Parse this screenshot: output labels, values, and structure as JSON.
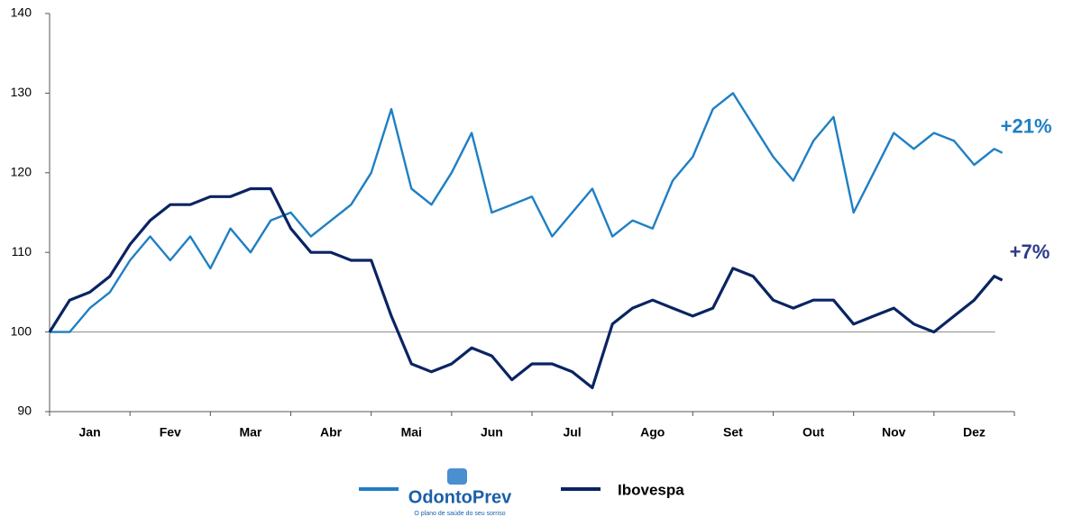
{
  "chart_data": {
    "type": "line",
    "categories": [
      "Jan",
      "Fev",
      "Mar",
      "Abr",
      "Mai",
      "Jun",
      "Jul",
      "Ago",
      "Set",
      "Out",
      "Nov",
      "Dez"
    ],
    "x": [
      0,
      0.25,
      0.5,
      0.75,
      1,
      1.25,
      1.5,
      1.75,
      2,
      2.25,
      2.5,
      2.75,
      3,
      3.25,
      3.5,
      3.75,
      4,
      4.25,
      4.5,
      4.75,
      5,
      5.25,
      5.5,
      5.75,
      6,
      6.25,
      6.5,
      6.75,
      7,
      7.25,
      7.5,
      7.75,
      8,
      8.25,
      8.5,
      8.75,
      9,
      9.25,
      9.5,
      9.75,
      10,
      10.25,
      10.5,
      10.75,
      11,
      11.25,
      11.5,
      11.75,
      11.85
    ],
    "xlim": [
      0,
      12
    ],
    "ylim": [
      90,
      140
    ],
    "yticks": [
      90,
      100,
      110,
      120,
      130,
      140
    ],
    "reference_line": 100,
    "series": [
      {
        "name": "OdontoPrev",
        "color": "#1f7fc4",
        "end_label": "+21%",
        "values": [
          100,
          100,
          103,
          105,
          109,
          112,
          109,
          112,
          108,
          113,
          110,
          114,
          115,
          112,
          114,
          116,
          120,
          128,
          118,
          116,
          120,
          125,
          115,
          116,
          117,
          112,
          115,
          118,
          112,
          114,
          113,
          119,
          122,
          128,
          130,
          126,
          122,
          119,
          124,
          127,
          115,
          120,
          125,
          123,
          125,
          124,
          121,
          123,
          122.5
        ]
      },
      {
        "name": "Ibovespa",
        "color": "#0a2463",
        "end_label": "+7%",
        "values": [
          100,
          104,
          105,
          107,
          111,
          114,
          116,
          116,
          117,
          117,
          118,
          118,
          113,
          110,
          110,
          109,
          109,
          102,
          96,
          95,
          96,
          98,
          97,
          94,
          96,
          96,
          95,
          93,
          101,
          103,
          104,
          103,
          102,
          103,
          108,
          107,
          104,
          103,
          104,
          104,
          101,
          102,
          103,
          101,
          100,
          102,
          104,
          107,
          106.5
        ]
      }
    ],
    "logo_tagline": "O plano de saúde do seu sorriso"
  }
}
